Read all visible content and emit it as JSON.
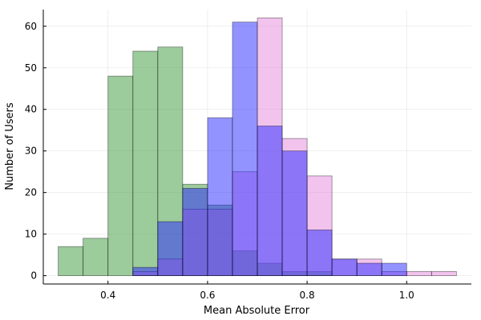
{
  "chart_data": {
    "type": "bar",
    "subtype": "overlaid-histogram",
    "xlabel": "Mean Absolute Error",
    "ylabel": "Number of Users",
    "xlim": [
      0.27,
      1.13
    ],
    "ylim": [
      -2,
      64
    ],
    "xticks": [
      0.4,
      0.6,
      0.8,
      1.0
    ],
    "xtick_labels": [
      "0.4",
      "0.6",
      "0.8",
      "1.0"
    ],
    "yticks": [
      0,
      10,
      20,
      30,
      40,
      50,
      60
    ],
    "ytick_labels": [
      "0",
      "10",
      "20",
      "30",
      "40",
      "50",
      "60"
    ],
    "grid": true,
    "legend": false,
    "bin_width": 0.05,
    "series": [
      {
        "color": "#4aa14a",
        "opacity": 0.55,
        "bins": [
          {
            "x0": 0.3,
            "count": 7
          },
          {
            "x0": 0.35,
            "count": 9
          },
          {
            "x0": 0.4,
            "count": 48
          },
          {
            "x0": 0.45,
            "count": 54
          },
          {
            "x0": 0.5,
            "count": 55
          },
          {
            "x0": 0.55,
            "count": 22
          },
          {
            "x0": 0.6,
            "count": 17
          },
          {
            "x0": 0.65,
            "count": 6
          },
          {
            "x0": 0.7,
            "count": 3
          },
          {
            "x0": 0.75,
            "count": 1
          },
          {
            "x0": 0.8,
            "count": 1
          }
        ]
      },
      {
        "color": "#e07ad8",
        "opacity": 0.45,
        "bins": [
          {
            "x0": 0.45,
            "count": 1
          },
          {
            "x0": 0.5,
            "count": 4
          },
          {
            "x0": 0.55,
            "count": 16
          },
          {
            "x0": 0.6,
            "count": 16
          },
          {
            "x0": 0.65,
            "count": 25
          },
          {
            "x0": 0.7,
            "count": 62
          },
          {
            "x0": 0.75,
            "count": 33
          },
          {
            "x0": 0.8,
            "count": 24
          },
          {
            "x0": 0.85,
            "count": 4
          },
          {
            "x0": 0.9,
            "count": 4
          },
          {
            "x0": 0.95,
            "count": 1
          },
          {
            "x0": 1.0,
            "count": 1
          },
          {
            "x0": 1.05,
            "count": 1
          }
        ]
      },
      {
        "color": "#2828ff",
        "opacity": 0.5,
        "bins": [
          {
            "x0": 0.45,
            "count": 2
          },
          {
            "x0": 0.5,
            "count": 13
          },
          {
            "x0": 0.55,
            "count": 21
          },
          {
            "x0": 0.6,
            "count": 38
          },
          {
            "x0": 0.65,
            "count": 61
          },
          {
            "x0": 0.7,
            "count": 36
          },
          {
            "x0": 0.75,
            "count": 30
          },
          {
            "x0": 0.8,
            "count": 11
          },
          {
            "x0": 0.85,
            "count": 4
          },
          {
            "x0": 0.9,
            "count": 3
          },
          {
            "x0": 0.95,
            "count": 3
          }
        ]
      }
    ]
  }
}
